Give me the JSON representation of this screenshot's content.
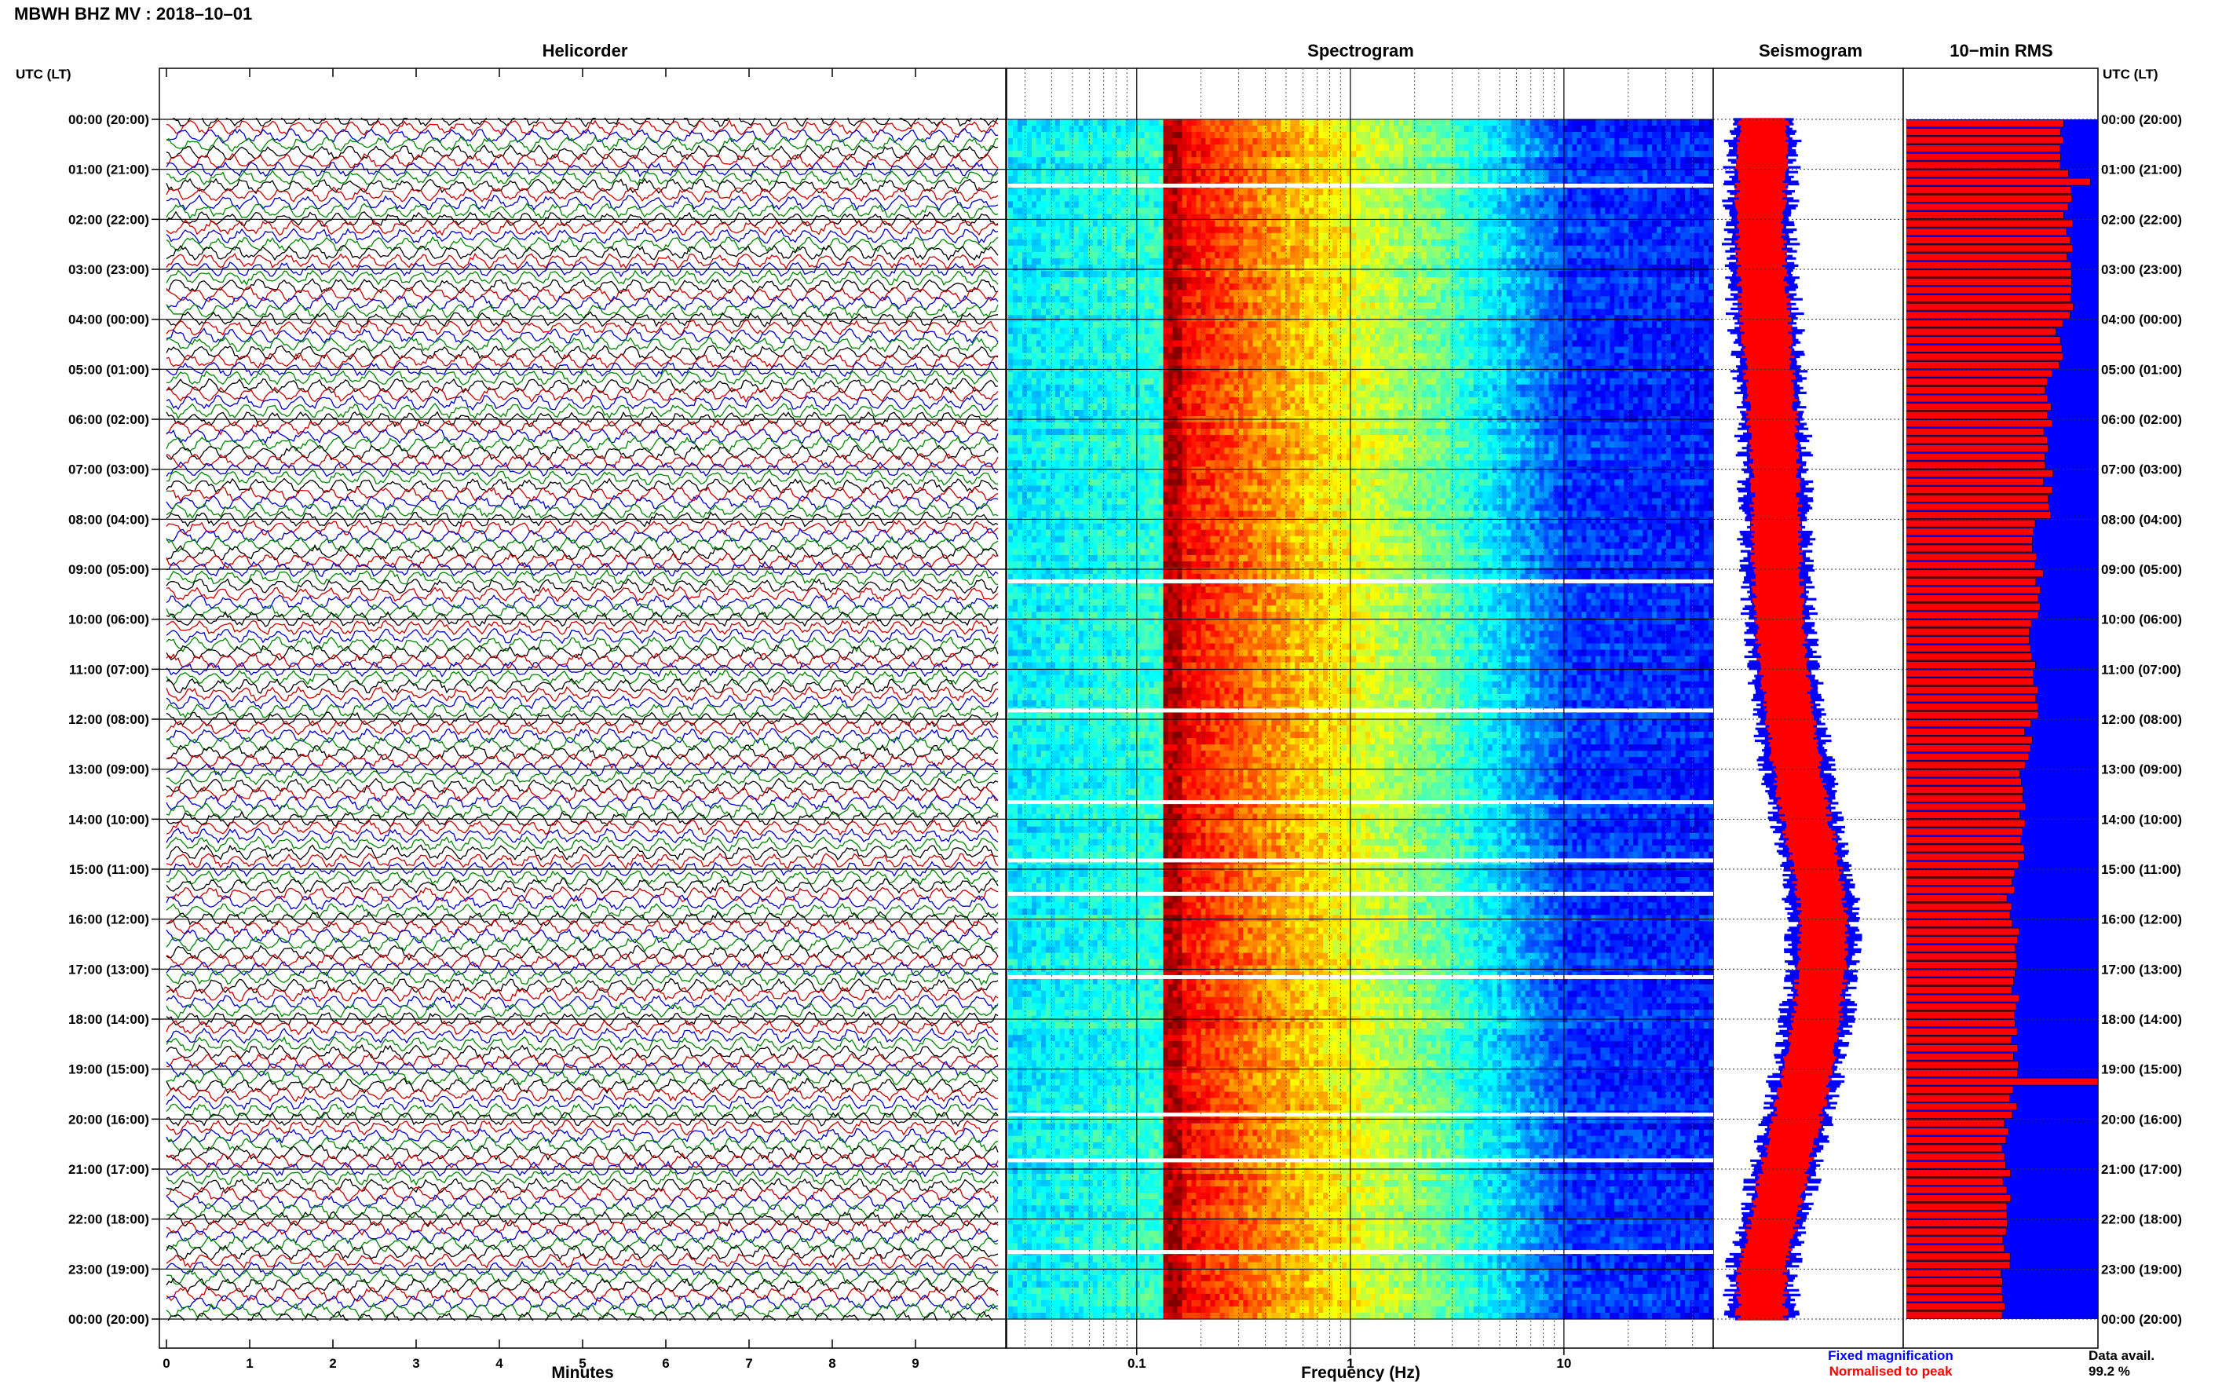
{
  "title": "MBWH BHZ MV : 2018–10–01",
  "panel_titles": {
    "helicorder": "Helicorder",
    "spectrogram": "Spectrogram",
    "seismogram": "Seismogram",
    "rms": "10−min RMS"
  },
  "axis_labels": {
    "time_left": "UTC (LT)",
    "time_right": "UTC (LT)",
    "minutes": "Minutes",
    "frequency": "Frequency (Hz)"
  },
  "legend": {
    "fixed": "Fixed magnification",
    "normalised": "Normalised to peak",
    "data_avail_label": "Data avail.",
    "data_avail_value": "99.2 %"
  },
  "colors": {
    "trace_black": "#000000",
    "trace_red": "#cc0000",
    "trace_blue": "#0000cc",
    "trace_green": "#008800",
    "fixed": "#0000ff",
    "normalised": "#ff0000"
  },
  "chart_data": [
    {
      "type": "line",
      "panel": "helicorder",
      "title": "Helicorder",
      "xlabel": "Minutes",
      "x_ticks": [
        "0",
        "1",
        "2",
        "3",
        "4",
        "5",
        "6",
        "7",
        "8",
        "9"
      ],
      "xlim": [
        0,
        10
      ],
      "trace_colors": [
        "black",
        "red",
        "blue",
        "green"
      ],
      "lines_per_hour": 6
    },
    {
      "type": "heatmap",
      "panel": "spectrogram",
      "title": "Spectrogram",
      "xlabel": "Frequency (Hz)",
      "x_scale": "log",
      "x_ticks": [
        "0.1",
        "1",
        "10"
      ],
      "xlim": [
        0.025,
        50
      ],
      "colormap": "jet",
      "dominant_band_hz": [
        0.14,
        0.4
      ],
      "data_gaps_utc": [
        "01:20",
        "09:15",
        "11:50",
        "13:40",
        "14:50",
        "15:30",
        "17:10",
        "19:55",
        "20:50",
        "22:40"
      ]
    },
    {
      "type": "area",
      "panel": "seismogram",
      "title": "Seismogram",
      "series": [
        {
          "name": "Fixed magnification",
          "color": "#0000ff"
        },
        {
          "name": "Normalised to peak",
          "color": "#ff0000"
        }
      ],
      "relative_amplitude_by_hour": [
        0.32,
        0.3,
        0.28,
        0.3,
        0.34,
        0.38,
        0.42,
        0.45,
        0.46,
        0.47,
        0.5,
        0.55,
        0.62,
        0.7,
        0.8,
        0.92,
        1.0,
        0.98,
        0.92,
        0.82,
        0.7,
        0.56,
        0.44,
        0.3,
        0.3
      ]
    },
    {
      "type": "bar",
      "panel": "rms",
      "title": "10−min RMS",
      "orientation": "horizontal",
      "hour_labels": [
        "00:00 (20:00)",
        "01:00 (21:00)",
        "02:00 (22:00)",
        "03:00 (23:00)",
        "04:00 (00:00)",
        "05:00 (01:00)",
        "06:00 (02:00)",
        "07:00 (03:00)",
        "08:00 (04:00)",
        "09:00 (05:00)",
        "10:00 (06:00)",
        "11:00 (07:00)",
        "12:00 (08:00)",
        "13:00 (09:00)",
        "14:00 (10:00)",
        "15:00 (11:00)",
        "16:00 (12:00)",
        "17:00 (13:00)",
        "18:00 (14:00)",
        "19:00 (15:00)",
        "20:00 (16:00)",
        "21:00 (17:00)",
        "22:00 (18:00)",
        "23:00 (19:00)",
        "00:00 (20:00)"
      ],
      "relative_rms_by_hour": [
        0.82,
        0.84,
        0.86,
        0.85,
        0.8,
        0.74,
        0.74,
        0.74,
        0.68,
        0.69,
        0.66,
        0.67,
        0.64,
        0.6,
        0.6,
        0.54,
        0.57,
        0.57,
        0.56,
        0.56,
        0.52,
        0.52,
        0.52,
        0.5
      ],
      "spike_hours_utc": {
        "01:00": 0.96,
        "19:00": 1.0
      },
      "data_available_percent": 99.2
    }
  ]
}
